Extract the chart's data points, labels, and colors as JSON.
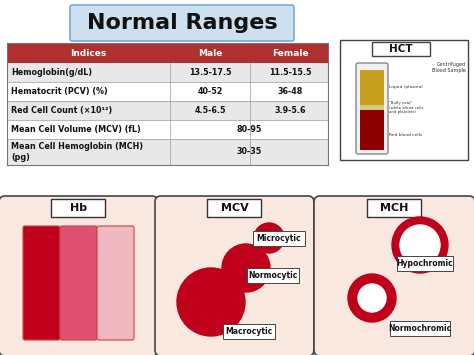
{
  "title": "Normal Ranges",
  "title_fontsize": 16,
  "title_box_color": "#cce0f0",
  "table_header_color": "#b03030",
  "table_headers": [
    "Indices",
    "Male",
    "Female"
  ],
  "table_rows": [
    [
      "Hemoglobin(g/dL)",
      "13.5-17.5",
      "11.5-15.5"
    ],
    [
      "Hematocrit (PCV) (%)",
      "40-52",
      "36-48"
    ],
    [
      "Red Cell Count (×10¹²)",
      "4.5-6.5",
      "3.9-5.6"
    ],
    [
      "Mean Cell Volume (MCV) (fL)",
      "80-95",
      ""
    ],
    [
      "Mean Cell Hemoglobin (MCH)\n(pg)",
      "30-35",
      ""
    ]
  ],
  "row_colors": [
    "#e8e8e8",
    "#ffffff",
    "#e8e8e8",
    "#ffffff",
    "#e8e8e8"
  ],
  "bg_color": "#ffffff",
  "dark_red": "#c0001a",
  "medium_red": "#e05070",
  "pale_pink": "#f0b8c0",
  "box_bg": "#f9e8e0",
  "plasma_color": "#c8a020",
  "rbc_color": "#8b0000",
  "buffy_color": "#d4c87a"
}
